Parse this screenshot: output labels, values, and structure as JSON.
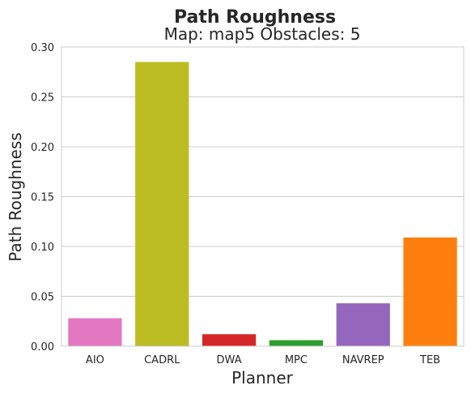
{
  "figure": {
    "suptitle": "Path Roughness",
    "subtitle": "Map: map5 Obstacles: 5"
  },
  "chart_data": {
    "type": "bar",
    "title": "Map: map5 Obstacles: 5",
    "xlabel": "Planner",
    "ylabel": "Path Roughness",
    "categories": [
      "AIO",
      "CADRL",
      "DWA",
      "MPC",
      "NAVREP",
      "TEB"
    ],
    "values": [
      0.028,
      0.285,
      0.012,
      0.006,
      0.043,
      0.109
    ],
    "colors": [
      "#e377c2",
      "#bcbd22",
      "#d62728",
      "#2ca02c",
      "#9467bd",
      "#ff7f0e"
    ],
    "ylim": [
      0,
      0.3
    ],
    "yticks": [
      0.0,
      0.05,
      0.1,
      0.15,
      0.2,
      0.25,
      0.3
    ],
    "ytick_labels": [
      "0.00",
      "0.05",
      "0.10",
      "0.15",
      "0.20",
      "0.25",
      "0.30"
    ],
    "grid": "horizontal",
    "legend": "none"
  }
}
